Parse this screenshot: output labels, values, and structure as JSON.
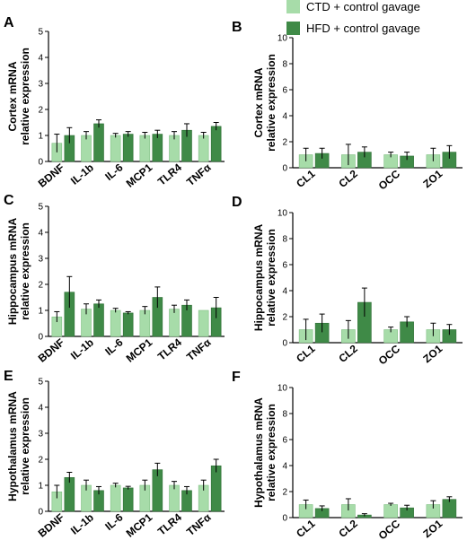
{
  "legend": {
    "entries": [
      {
        "label": "CTD + control gavage",
        "color": "#a7dca9"
      },
      {
        "label": "HFD + control gavage",
        "color": "#3f8a47"
      }
    ],
    "placement": "top-right"
  },
  "colors": {
    "ctd": "#a7dca9",
    "hfd": "#3f8a47",
    "axis": "#000000"
  },
  "chart_data": [
    {
      "panel": "A",
      "type": "bar",
      "ylabel": "Cortex mRNA relative expression",
      "ylim": [
        0,
        5
      ],
      "yticks": [
        0,
        1,
        2,
        3,
        4,
        5
      ],
      "categories": [
        "BDNF",
        "IL-1b",
        "IL-6",
        "MCP1",
        "TLR4",
        "TNFα"
      ],
      "series": [
        {
          "name": "CTD + control gavage",
          "values": [
            0.7,
            1.0,
            1.0,
            1.0,
            1.0,
            1.0
          ],
          "errors": [
            0.35,
            0.15,
            0.08,
            0.12,
            0.15,
            0.12
          ]
        },
        {
          "name": "HFD + control gavage",
          "values": [
            1.0,
            1.45,
            1.05,
            1.05,
            1.2,
            1.35
          ],
          "errors": [
            0.3,
            0.15,
            0.1,
            0.15,
            0.25,
            0.15
          ]
        }
      ],
      "grid": false
    },
    {
      "panel": "B",
      "type": "bar",
      "ylabel": "Cortex mRNA relative expression",
      "ylim": [
        0,
        10
      ],
      "yticks": [
        0,
        2,
        4,
        6,
        8,
        10
      ],
      "categories": [
        "CL1",
        "CL2",
        "OCC",
        "ZO1"
      ],
      "series": [
        {
          "name": "CTD + control gavage",
          "values": [
            1.0,
            1.0,
            1.0,
            1.0
          ],
          "errors": [
            0.5,
            0.8,
            0.2,
            0.5
          ]
        },
        {
          "name": "HFD + control gavage",
          "values": [
            1.1,
            1.2,
            0.9,
            1.2
          ],
          "errors": [
            0.4,
            0.4,
            0.3,
            0.5
          ]
        }
      ],
      "grid": false
    },
    {
      "panel": "C",
      "type": "bar",
      "ylabel": "Hippocampus mRNA relative expression",
      "ylim": [
        0,
        5
      ],
      "yticks": [
        0,
        1,
        2,
        3,
        4,
        5
      ],
      "categories": [
        "BDNF",
        "IL-1b",
        "IL-6",
        "MCP1",
        "TLR4",
        "TNFα"
      ],
      "series": [
        {
          "name": "CTD + control gavage",
          "values": [
            0.75,
            1.05,
            1.0,
            1.0,
            1.05,
            1.0
          ],
          "errors": [
            0.2,
            0.2,
            0.08,
            0.15,
            0.15,
            0.0
          ]
        },
        {
          "name": "HFD + control gavage",
          "values": [
            1.7,
            1.25,
            0.9,
            1.5,
            1.2,
            1.1
          ],
          "errors": [
            0.6,
            0.15,
            0.05,
            0.4,
            0.2,
            0.4
          ]
        }
      ],
      "grid": false
    },
    {
      "panel": "D",
      "type": "bar",
      "ylabel": "Hippocampus mRNA relative expression",
      "ylim": [
        0,
        10
      ],
      "yticks": [
        0,
        2,
        4,
        6,
        8,
        10
      ],
      "categories": [
        "CL1",
        "CL2",
        "OCC",
        "ZO1"
      ],
      "series": [
        {
          "name": "CTD + control gavage",
          "values": [
            1.0,
            1.0,
            1.0,
            1.0
          ],
          "errors": [
            0.8,
            0.7,
            0.2,
            0.5
          ]
        },
        {
          "name": "HFD + control gavage",
          "values": [
            1.5,
            3.1,
            1.6,
            1.0
          ],
          "errors": [
            0.7,
            1.1,
            0.4,
            0.4
          ]
        }
      ],
      "grid": false
    },
    {
      "panel": "E",
      "type": "bar",
      "ylabel": "Hypothalamus mRNA relative expression",
      "ylim": [
        0,
        5
      ],
      "yticks": [
        0,
        1,
        2,
        3,
        4,
        5
      ],
      "categories": [
        "BDNF",
        "IL-1b",
        "IL-6",
        "MCP1",
        "TLR4",
        "TNFα"
      ],
      "series": [
        {
          "name": "CTD + control gavage",
          "values": [
            0.75,
            1.0,
            1.0,
            1.0,
            1.0,
            1.0
          ],
          "errors": [
            0.25,
            0.2,
            0.08,
            0.2,
            0.15,
            0.2
          ]
        },
        {
          "name": "HFD + control gavage",
          "values": [
            1.3,
            0.8,
            0.9,
            1.6,
            0.8,
            1.75
          ],
          "errors": [
            0.2,
            0.15,
            0.06,
            0.25,
            0.15,
            0.25
          ]
        }
      ],
      "grid": false
    },
    {
      "panel": "F",
      "type": "bar",
      "ylabel": "Hypothalamus mRNA relative expression",
      "ylim": [
        0,
        10
      ],
      "yticks": [
        0,
        2,
        4,
        6,
        8,
        10
      ],
      "categories": [
        "CL1",
        "CL2",
        "OCC",
        "ZO1"
      ],
      "series": [
        {
          "name": "CTD + control gavage",
          "values": [
            1.0,
            1.0,
            1.0,
            1.0
          ],
          "errors": [
            0.35,
            0.45,
            0.1,
            0.3
          ]
        },
        {
          "name": "HFD + control gavage",
          "values": [
            0.7,
            0.2,
            0.75,
            1.4
          ],
          "errors": [
            0.2,
            0.1,
            0.2,
            0.2
          ]
        }
      ],
      "grid": false
    }
  ]
}
